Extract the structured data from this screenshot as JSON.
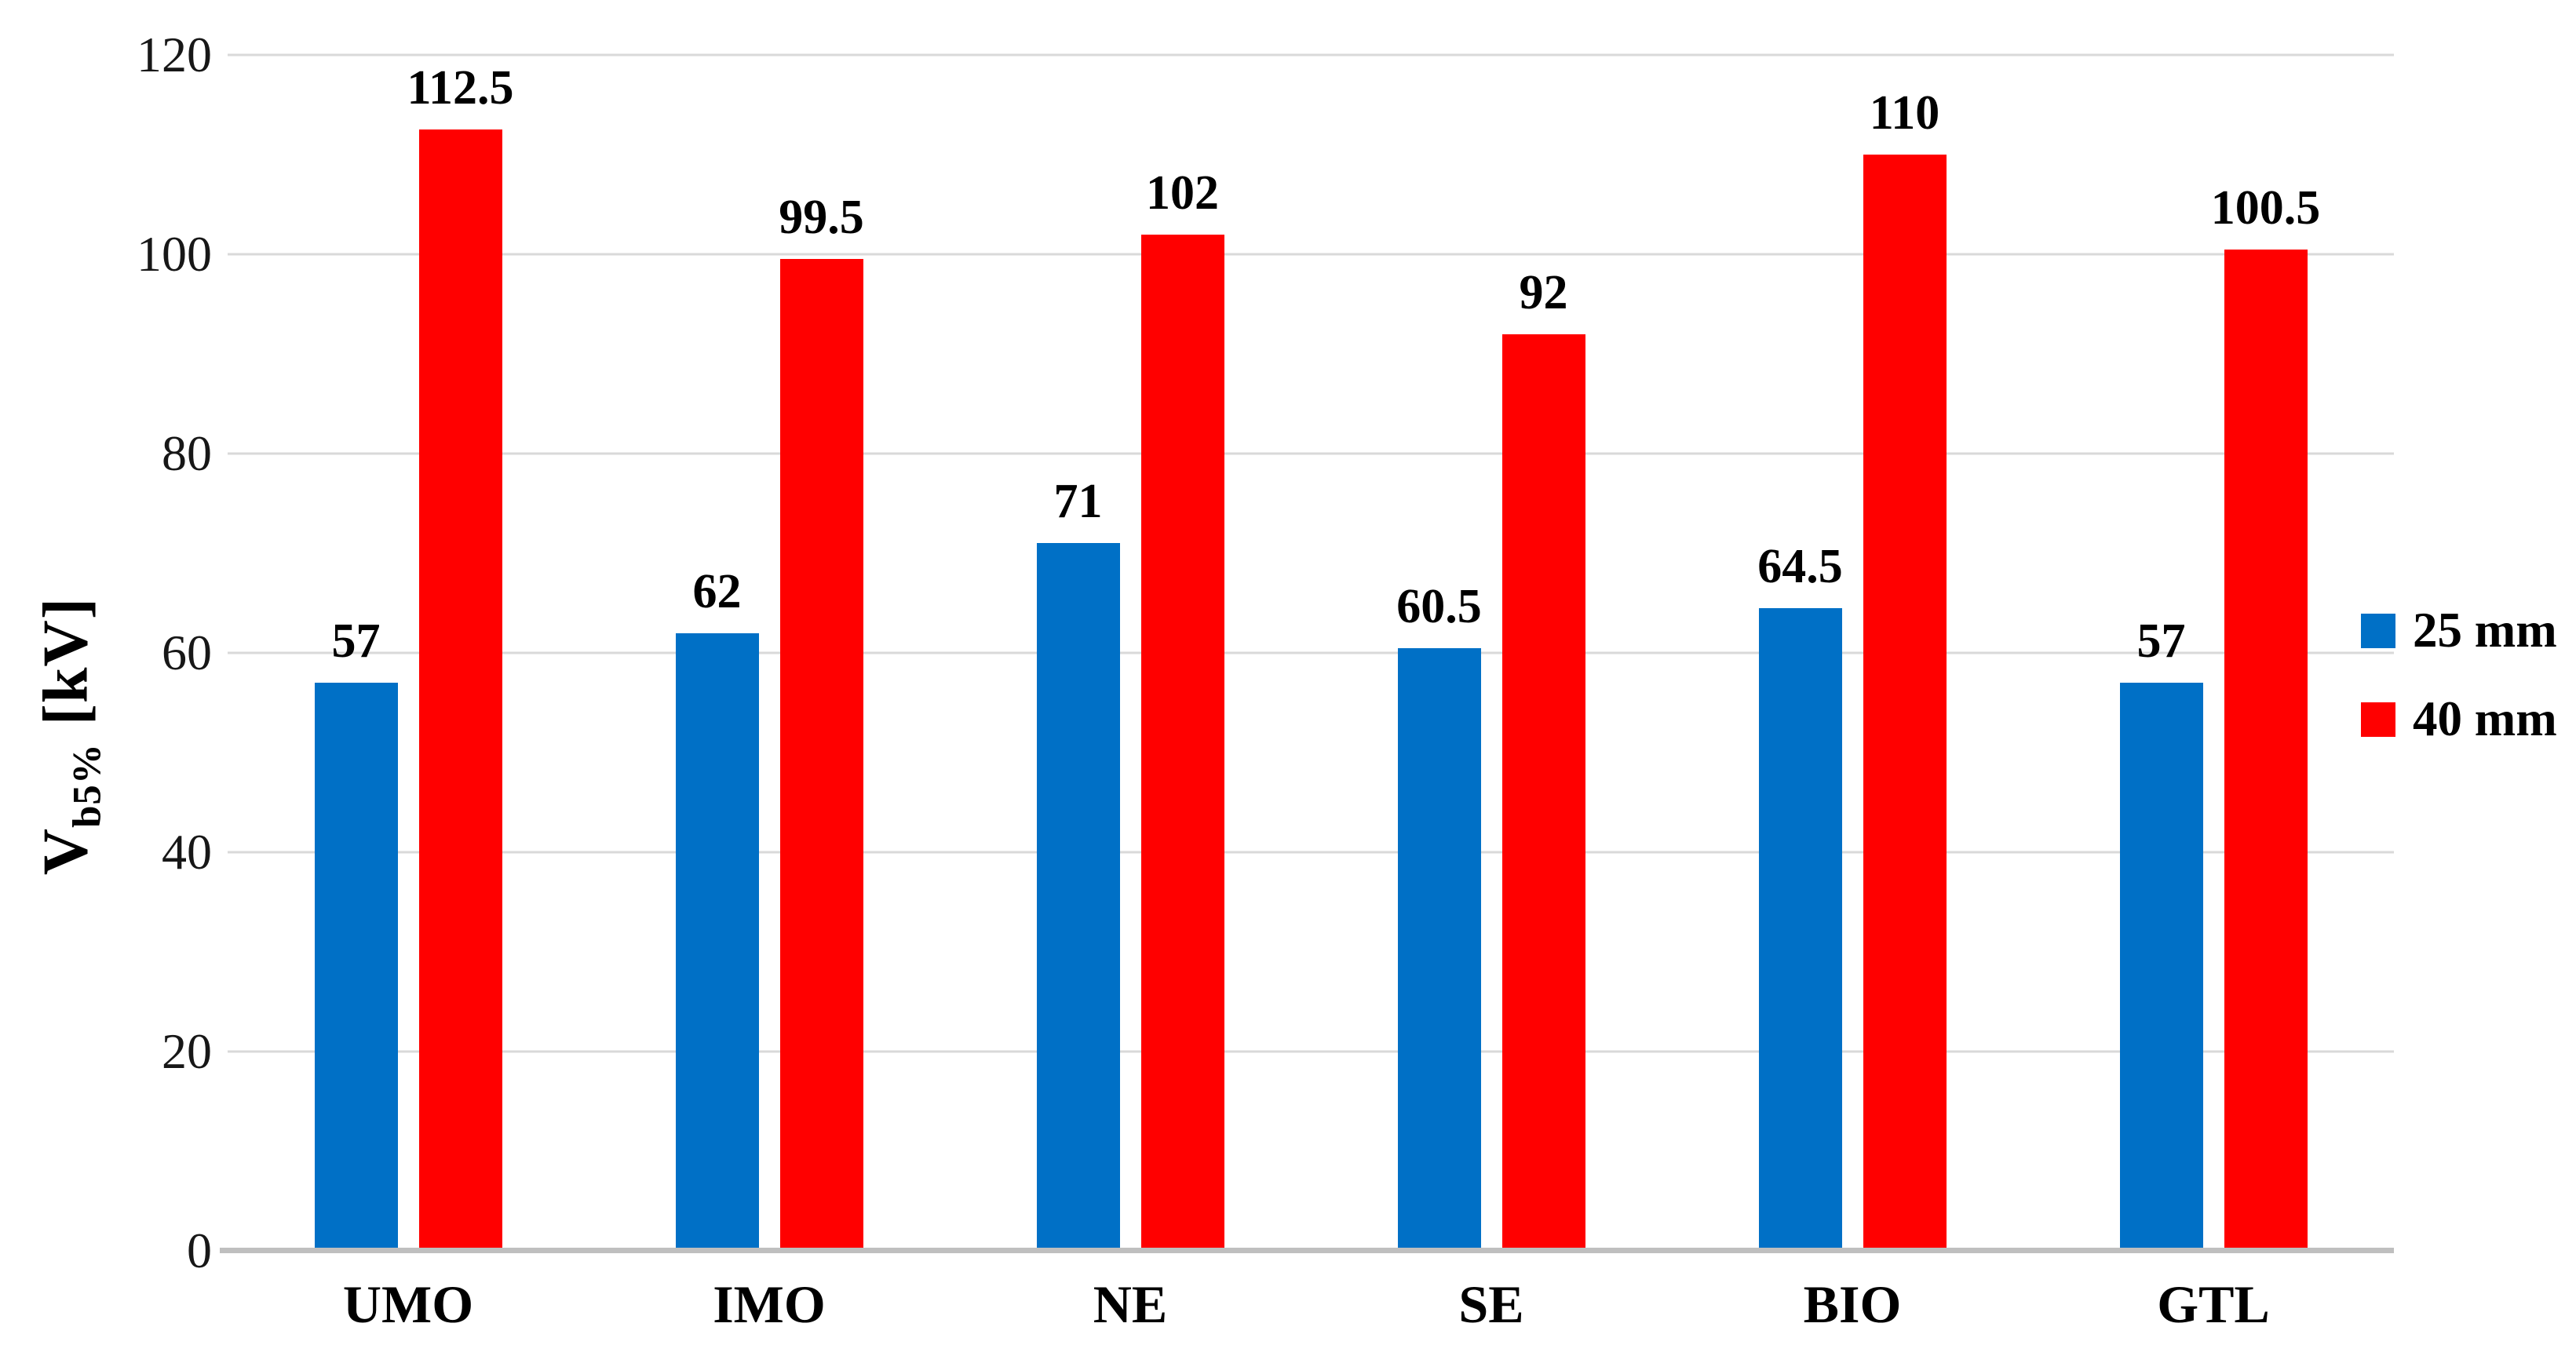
{
  "chart_data": {
    "type": "bar",
    "title": "",
    "categories": [
      "UMO",
      "IMO",
      "NE",
      "SE",
      "BIO",
      "GTL"
    ],
    "series": [
      {
        "name": "25 mm",
        "color": "#0070C6",
        "values": [
          57,
          62,
          71,
          60.5,
          64.5,
          57
        ]
      },
      {
        "name": "40 mm",
        "color": "#FF0000",
        "values": [
          112.5,
          99.5,
          102,
          92,
          110,
          100.5
        ]
      }
    ],
    "ylabel": {
      "variable": "V",
      "subscript": "b5%",
      "unit": "[kV]"
    },
    "xlabel": "",
    "ylim": [
      0,
      120
    ],
    "yticks": [
      0,
      20,
      40,
      60,
      80,
      100,
      120
    ],
    "grid": "horizontal",
    "legend_position": "right",
    "data_labels": "above-bars"
  },
  "colors": {
    "gridline": "#D9D9D9",
    "axis_line": "#BFBFBF",
    "text": "#000000",
    "background": "#FFFFFF"
  }
}
